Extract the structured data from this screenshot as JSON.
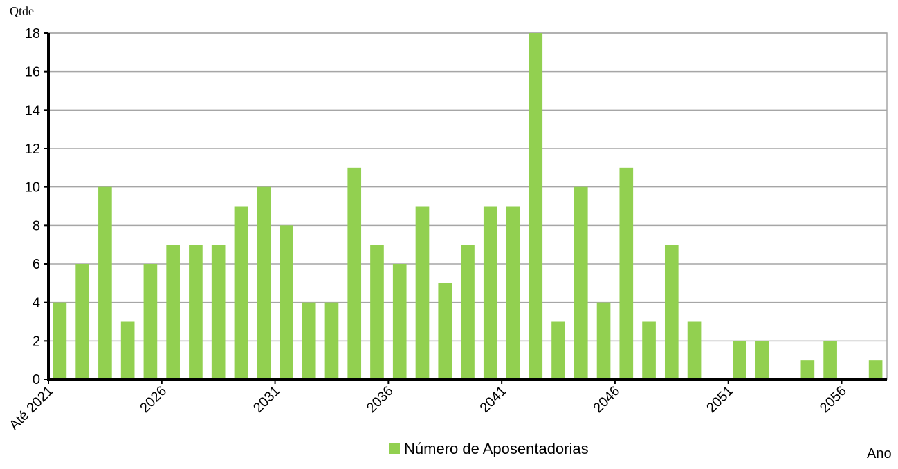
{
  "chart_data": {
    "type": "bar",
    "y_label": "Qtde",
    "x_label": "Ano",
    "categories": [
      "Até 2021",
      null,
      null,
      null,
      null,
      "2026",
      null,
      null,
      null,
      null,
      "2031",
      null,
      null,
      null,
      null,
      "2036",
      null,
      null,
      null,
      null,
      "2041",
      null,
      null,
      null,
      null,
      "2046",
      null,
      null,
      null,
      null,
      "2051",
      null,
      null,
      null,
      null,
      "2056",
      null
    ],
    "series": [
      {
        "name": "Número de Aposentadorias",
        "color": "#92d050",
        "values": [
          4,
          6,
          10,
          3,
          6,
          7,
          7,
          7,
          9,
          10,
          8,
          4,
          4,
          11,
          7,
          6,
          9,
          5,
          7,
          9,
          9,
          18,
          3,
          10,
          4,
          11,
          3,
          7,
          3,
          0,
          2,
          2,
          0,
          1,
          2,
          0,
          1
        ]
      }
    ],
    "ylim": [
      0,
      18
    ],
    "yticks": [
      0,
      2,
      4,
      6,
      8,
      10,
      12,
      14,
      16,
      18
    ],
    "grid": true,
    "legend": "bottom"
  }
}
